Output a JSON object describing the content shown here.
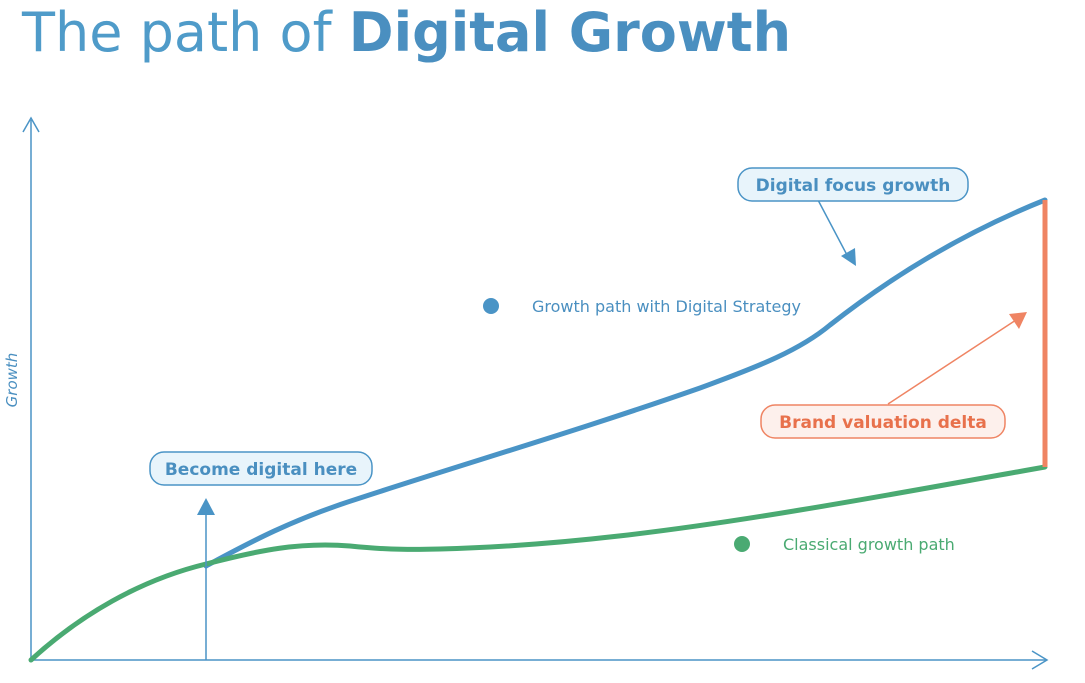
{
  "title": {
    "prefix": "The path of ",
    "emphasis": "Digital Growth"
  },
  "axes": {
    "y_label": "Growth"
  },
  "callouts": {
    "digital_focus": "Digital focus growth",
    "become_digital": "Become digital here",
    "brand_delta": "Brand valuation delta"
  },
  "legend": {
    "digital": "Growth path with Digital Strategy",
    "classical": "Classical growth path"
  },
  "colors": {
    "blue": "#4a94c6",
    "green": "#4aaa72",
    "orange": "#ef8463",
    "box_fill_blue": "#e8f4fb",
    "box_fill_orange": "#fdf0ec",
    "text_blue": "#4a8fc0",
    "text_green": "#4aaa72",
    "text_orange": "#e8714c"
  }
}
